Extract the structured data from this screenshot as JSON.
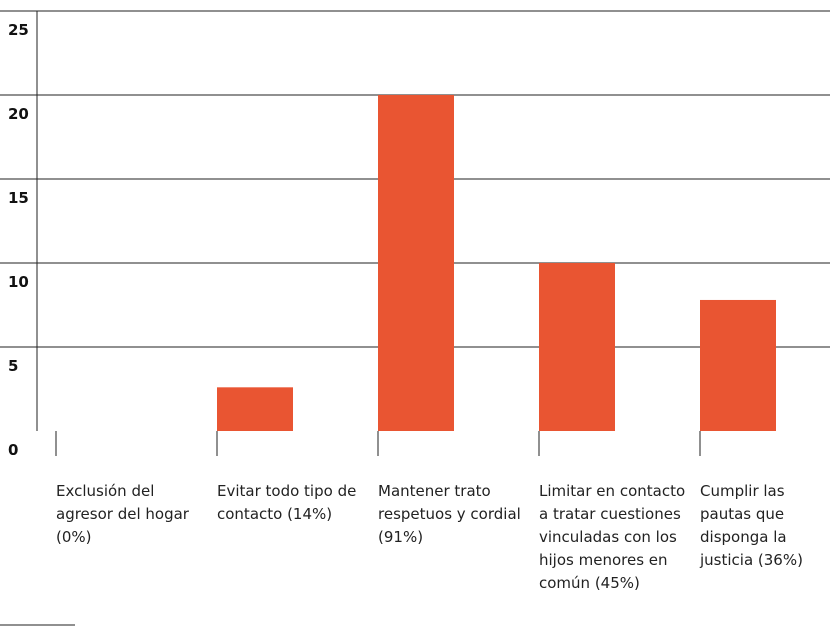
{
  "chart_data": {
    "type": "bar",
    "categories": [
      "Exclusión del agresor del hogar (0%)",
      "Evitar todo tipo de contacto (14%)",
      "Mantener trato respetuos y cordial (91%)",
      "Limitar en contacto a tratar cuestiones vinculadas con los hijos menores en común (45%)",
      "Cumplir las pautas que disponga la justicia (36%)"
    ],
    "values": [
      0,
      2.6,
      20,
      10,
      7.8
    ],
    "color": "#e95532",
    "ylim": [
      0,
      25
    ],
    "yticks": [
      0,
      5,
      10,
      15,
      20,
      25
    ],
    "grid": true
  }
}
